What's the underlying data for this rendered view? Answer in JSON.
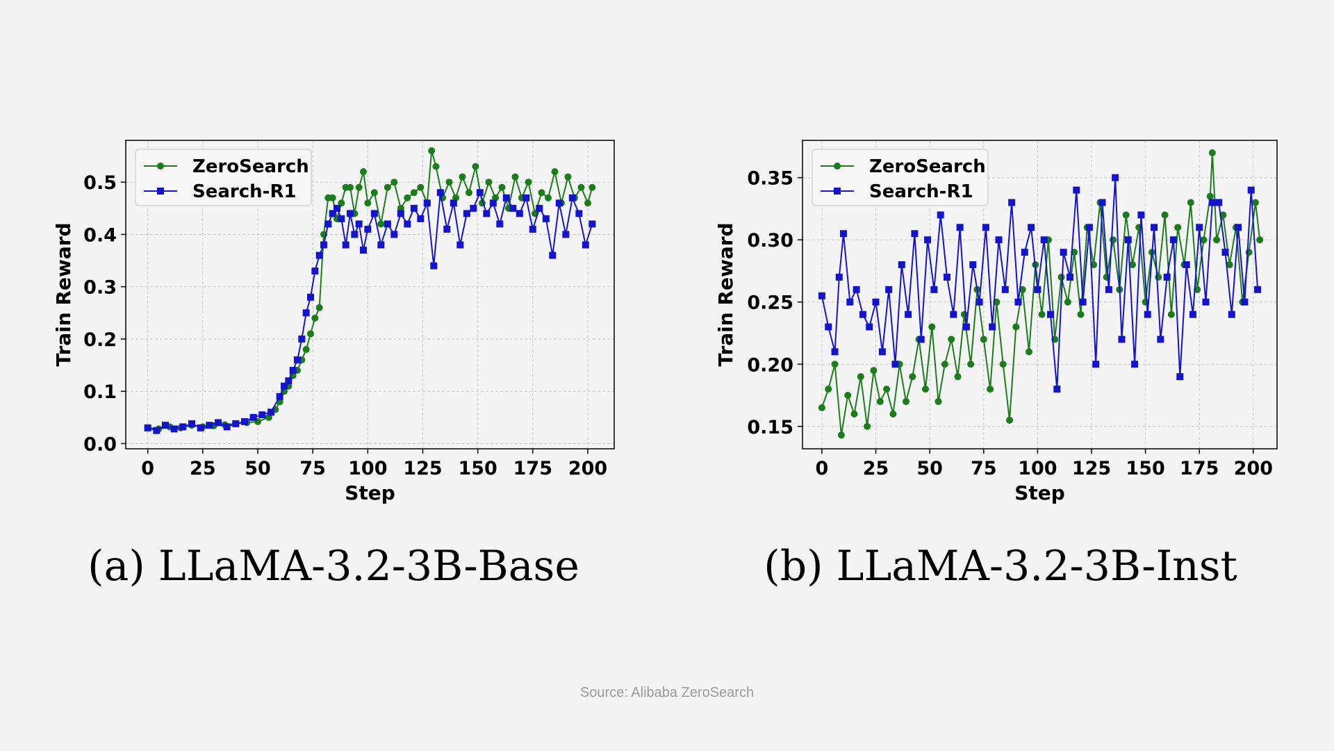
{
  "colors": {
    "zerosearch": "#1a7d1a",
    "search_r1": "#1414cc",
    "background": "#f4f4f4",
    "grid": "#c8c8c8"
  },
  "chart_data": [
    {
      "type": "line",
      "xlabel": "Step",
      "ylabel": "Train Reward",
      "xlim": [
        -10,
        212
      ],
      "ylim": [
        -0.01,
        0.58
      ],
      "xticks": [
        0,
        25,
        50,
        75,
        100,
        125,
        150,
        175,
        200
      ],
      "yticks": [
        0.0,
        0.1,
        0.2,
        0.3,
        0.4,
        0.5
      ],
      "ytick_labels": [
        "0.0",
        "0.1",
        "0.2",
        "0.3",
        "0.4",
        "0.5"
      ],
      "grid": true,
      "legend": "top-left",
      "series": [
        {
          "name": "ZeroSearch",
          "marker": "circle",
          "x": [
            0,
            5,
            10,
            15,
            20,
            25,
            30,
            35,
            40,
            45,
            50,
            55,
            58,
            60,
            62,
            64,
            66,
            68,
            70,
            72,
            74,
            76,
            78,
            80,
            82,
            84,
            86,
            88,
            90,
            92,
            94,
            96,
            98,
            100,
            103,
            106,
            109,
            112,
            115,
            118,
            121,
            124,
            127,
            129,
            131,
            134,
            137,
            140,
            143,
            146,
            149,
            152,
            155,
            158,
            161,
            164,
            167,
            170,
            173,
            176,
            179,
            182,
            185,
            188,
            191,
            194,
            197,
            200,
            202
          ],
          "y": [
            0.03,
            0.028,
            0.032,
            0.03,
            0.035,
            0.032,
            0.034,
            0.036,
            0.038,
            0.04,
            0.042,
            0.05,
            0.065,
            0.08,
            0.1,
            0.11,
            0.13,
            0.14,
            0.16,
            0.18,
            0.21,
            0.24,
            0.26,
            0.4,
            0.47,
            0.47,
            0.43,
            0.46,
            0.49,
            0.49,
            0.44,
            0.49,
            0.52,
            0.46,
            0.48,
            0.42,
            0.49,
            0.5,
            0.45,
            0.47,
            0.48,
            0.49,
            0.46,
            0.56,
            0.53,
            0.47,
            0.5,
            0.47,
            0.51,
            0.48,
            0.53,
            0.46,
            0.5,
            0.47,
            0.49,
            0.45,
            0.51,
            0.47,
            0.5,
            0.44,
            0.48,
            0.47,
            0.52,
            0.46,
            0.51,
            0.47,
            0.49,
            0.46,
            0.49
          ]
        },
        {
          "name": "Search-R1",
          "marker": "square",
          "x": [
            0,
            4,
            8,
            12,
            16,
            20,
            24,
            28,
            32,
            36,
            40,
            44,
            48,
            52,
            56,
            60,
            62,
            64,
            66,
            68,
            70,
            72,
            74,
            76,
            78,
            80,
            82,
            84,
            86,
            88,
            90,
            92,
            94,
            96,
            98,
            100,
            103,
            106,
            109,
            112,
            115,
            118,
            121,
            124,
            127,
            130,
            133,
            136,
            139,
            142,
            145,
            148,
            151,
            154,
            157,
            160,
            163,
            166,
            169,
            172,
            175,
            178,
            181,
            184,
            187,
            190,
            193,
            196,
            199,
            202
          ],
          "y": [
            0.03,
            0.025,
            0.035,
            0.028,
            0.032,
            0.038,
            0.03,
            0.035,
            0.04,
            0.032,
            0.038,
            0.042,
            0.05,
            0.055,
            0.06,
            0.09,
            0.11,
            0.12,
            0.14,
            0.16,
            0.2,
            0.25,
            0.28,
            0.33,
            0.36,
            0.38,
            0.42,
            0.44,
            0.45,
            0.43,
            0.38,
            0.44,
            0.4,
            0.42,
            0.37,
            0.41,
            0.44,
            0.38,
            0.42,
            0.4,
            0.44,
            0.42,
            0.45,
            0.43,
            0.46,
            0.34,
            0.48,
            0.41,
            0.46,
            0.38,
            0.44,
            0.45,
            0.48,
            0.44,
            0.46,
            0.42,
            0.47,
            0.45,
            0.44,
            0.47,
            0.41,
            0.45,
            0.43,
            0.36,
            0.46,
            0.4,
            0.47,
            0.44,
            0.38,
            0.42
          ]
        }
      ]
    },
    {
      "type": "line",
      "xlabel": "Step",
      "ylabel": "Train Reward",
      "xlim": [
        -9,
        211
      ],
      "ylim": [
        0.132,
        0.38
      ],
      "xticks": [
        0,
        25,
        50,
        75,
        100,
        125,
        150,
        175,
        200
      ],
      "yticks": [
        0.15,
        0.2,
        0.25,
        0.3,
        0.35
      ],
      "ytick_labels": [
        "0.15",
        "0.20",
        "0.25",
        "0.30",
        "0.35"
      ],
      "grid": true,
      "legend": "top-left",
      "series": [
        {
          "name": "ZeroSearch",
          "marker": "circle",
          "x": [
            0,
            3,
            6,
            9,
            12,
            15,
            18,
            21,
            24,
            27,
            30,
            33,
            36,
            39,
            42,
            45,
            48,
            51,
            54,
            57,
            60,
            63,
            66,
            69,
            72,
            75,
            78,
            81,
            84,
            87,
            90,
            93,
            96,
            99,
            102,
            105,
            108,
            111,
            114,
            117,
            120,
            123,
            126,
            129,
            132,
            135,
            138,
            141,
            144,
            147,
            150,
            153,
            156,
            159,
            162,
            165,
            168,
            171,
            174,
            177,
            180,
            181,
            183,
            186,
            189,
            192,
            195,
            198,
            201,
            203
          ],
          "y": [
            0.165,
            0.18,
            0.2,
            0.143,
            0.175,
            0.16,
            0.19,
            0.15,
            0.195,
            0.17,
            0.18,
            0.16,
            0.2,
            0.17,
            0.19,
            0.22,
            0.18,
            0.23,
            0.17,
            0.2,
            0.22,
            0.19,
            0.24,
            0.2,
            0.26,
            0.22,
            0.18,
            0.25,
            0.2,
            0.155,
            0.23,
            0.26,
            0.21,
            0.28,
            0.24,
            0.3,
            0.22,
            0.27,
            0.25,
            0.29,
            0.24,
            0.31,
            0.28,
            0.33,
            0.27,
            0.3,
            0.26,
            0.32,
            0.28,
            0.31,
            0.25,
            0.29,
            0.27,
            0.32,
            0.24,
            0.31,
            0.28,
            0.33,
            0.26,
            0.3,
            0.335,
            0.37,
            0.3,
            0.32,
            0.28,
            0.31,
            0.25,
            0.29,
            0.33,
            0.3
          ]
        },
        {
          "name": "Search-R1",
          "marker": "square",
          "x": [
            0,
            3,
            6,
            8,
            10,
            13,
            16,
            19,
            22,
            25,
            28,
            31,
            34,
            37,
            40,
            43,
            46,
            49,
            52,
            55,
            58,
            61,
            64,
            67,
            70,
            73,
            76,
            79,
            82,
            85,
            88,
            91,
            94,
            97,
            100,
            103,
            106,
            109,
            112,
            115,
            118,
            121,
            124,
            127,
            130,
            133,
            136,
            139,
            142,
            145,
            148,
            151,
            154,
            157,
            160,
            163,
            166,
            169,
            172,
            175,
            178,
            181,
            184,
            187,
            190,
            193,
            196,
            199,
            202
          ],
          "y": [
            0.255,
            0.23,
            0.21,
            0.27,
            0.305,
            0.25,
            0.26,
            0.24,
            0.23,
            0.25,
            0.21,
            0.26,
            0.2,
            0.28,
            0.24,
            0.305,
            0.22,
            0.3,
            0.26,
            0.32,
            0.27,
            0.24,
            0.31,
            0.23,
            0.28,
            0.25,
            0.31,
            0.23,
            0.3,
            0.26,
            0.33,
            0.25,
            0.29,
            0.31,
            0.26,
            0.3,
            0.24,
            0.18,
            0.29,
            0.27,
            0.34,
            0.25,
            0.31,
            0.2,
            0.33,
            0.26,
            0.35,
            0.22,
            0.3,
            0.2,
            0.32,
            0.24,
            0.31,
            0.22,
            0.27,
            0.3,
            0.19,
            0.28,
            0.24,
            0.31,
            0.25,
            0.33,
            0.33,
            0.29,
            0.24,
            0.31,
            0.25,
            0.34,
            0.26
          ]
        }
      ]
    }
  ],
  "captions": {
    "a": "(a) LLaMA-3.2-3B-Base",
    "b": "(b) LLaMA-3.2-3B-Inst"
  },
  "source": "Source: Alibaba ZeroSearch"
}
